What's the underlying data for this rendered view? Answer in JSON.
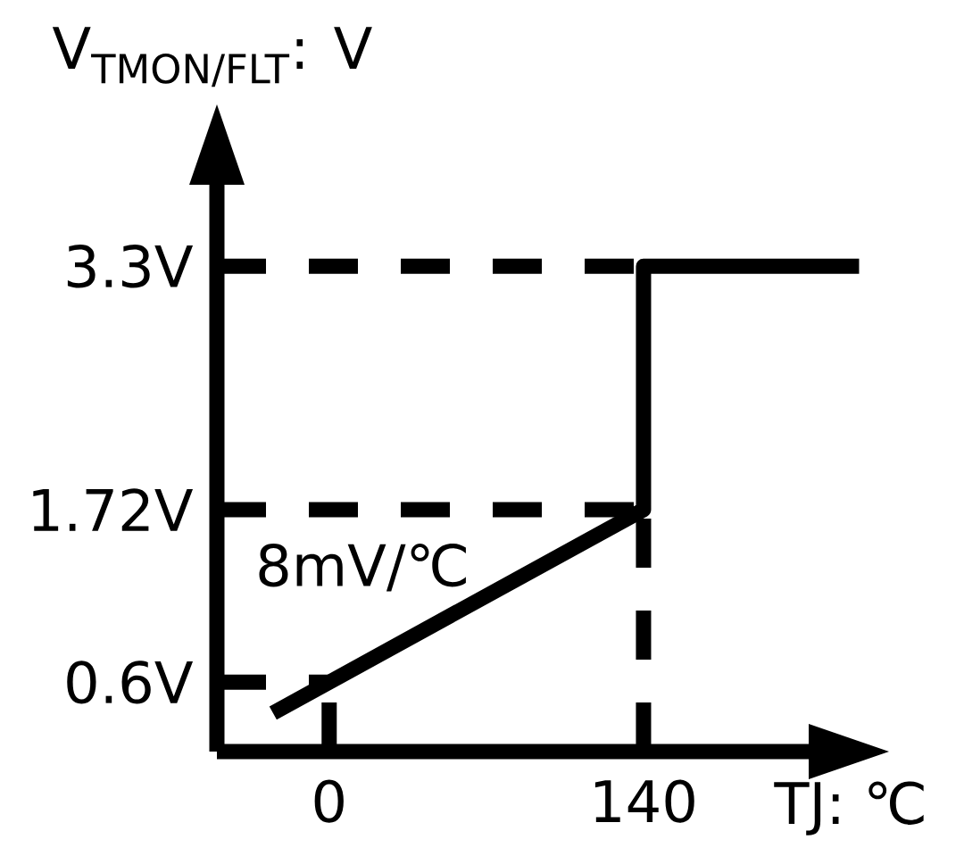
{
  "chart_data": {
    "type": "line",
    "xlabel": "TJ: ℃",
    "ylabel": "V$_{TMON/FLT}$: V",
    "x": [
      -25,
      0,
      140,
      140,
      236
    ],
    "values": [
      0.4,
      0.6,
      1.72,
      3.3,
      3.3
    ],
    "color": "#000000",
    "xlim": [
      -50,
      239
    ],
    "ylim": [
      0.15,
      4.2
    ],
    "xticks": [
      0,
      140
    ],
    "yticks": [
      {
        "value": 0.6,
        "label": "0.6V"
      },
      {
        "value": 1.72,
        "label": "1.72V"
      },
      {
        "value": 3.3,
        "label": "3.3V"
      }
    ],
    "ref_lines": [
      {
        "axis": "y",
        "value": 0.6,
        "line_style": "dashed",
        "color": "#000000"
      },
      {
        "axis": "y",
        "value": 1.72,
        "line_style": "dashed",
        "color": "#000000"
      },
      {
        "axis": "y",
        "value": 3.3,
        "line_style": "dashed",
        "color": "#000000"
      },
      {
        "axis": "x",
        "value": 0,
        "line_style": "dashed",
        "color": "#000000"
      },
      {
        "axis": "x",
        "value": 140,
        "line_style": "dashed",
        "color": "#000000"
      }
    ],
    "annotations": [
      {
        "text": "8mV/℃",
        "x": 66,
        "y": 1.13
      }
    ]
  }
}
